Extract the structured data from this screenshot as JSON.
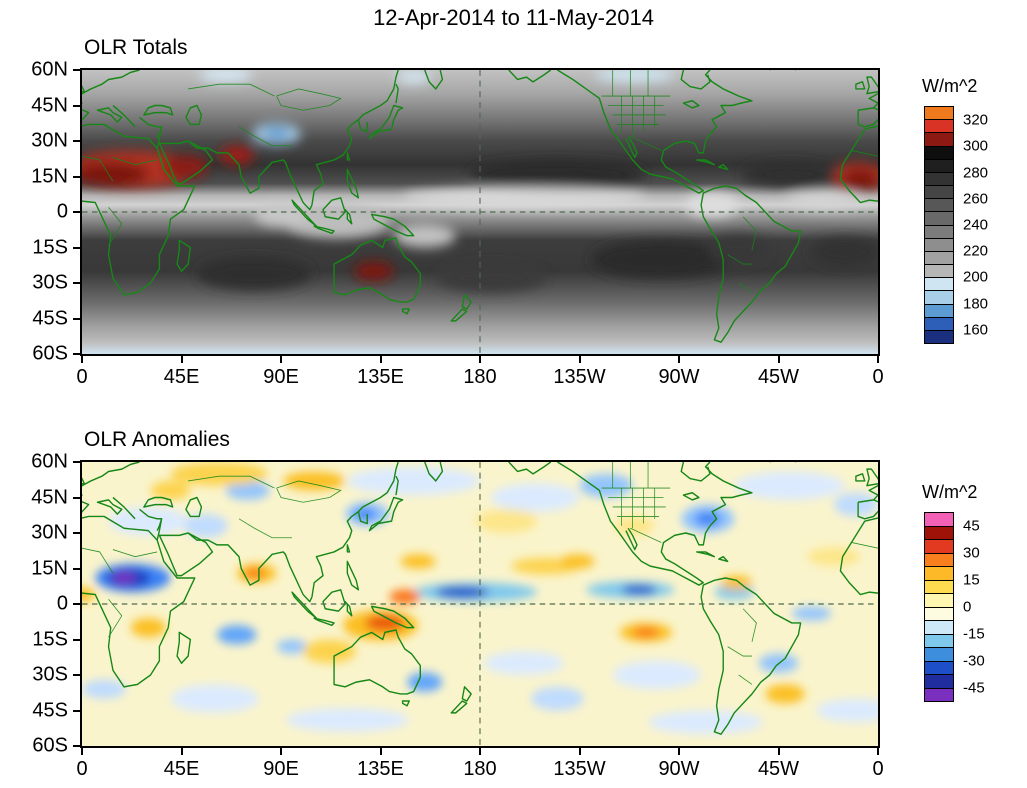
{
  "page": {
    "title": "12-Apr-2014 to 11-May-2014"
  },
  "panels": [
    {
      "title": "OLR Totals",
      "colorbar": {
        "label": "W/m^2"
      }
    },
    {
      "title": "OLR Anomalies",
      "colorbar": {
        "label": "W/m^2"
      }
    }
  ],
  "chart_data": [
    {
      "type": "heatmap",
      "title": "OLR Totals",
      "units": "W/m^2",
      "blur": 5,
      "x_ticks": [
        "0",
        "45E",
        "90E",
        "135E",
        "180",
        "135W",
        "90W",
        "45W",
        "0"
      ],
      "y_ticks": [
        "60N",
        "45N",
        "30N",
        "15N",
        "0",
        "15S",
        "30S",
        "45S",
        "60S"
      ],
      "colorbar": {
        "tick_labels": [
          "320",
          "300",
          "280",
          "260",
          "240",
          "220",
          "200",
          "180",
          "160"
        ],
        "tick_values": [
          320,
          300,
          280,
          260,
          240,
          220,
          200,
          180,
          160
        ],
        "colors": [
          "#EF7A1E",
          "#D93325",
          "#8C1A12",
          "#0E0E0E",
          "#1F1F1F",
          "#333333",
          "#454545",
          "#575757",
          "#696969",
          "#7C7C7C",
          "#8E8E8E",
          "#A2A2A2",
          "#B6B6B6",
          "#CFE5F2",
          "#A8CEE8",
          "#5D9BD3",
          "#2D5FB8",
          "#1A2F7E"
        ]
      },
      "lat_bands": [
        {
          "lat": 60,
          "color": "#C2C2C2",
          "value": 215
        },
        {
          "lat": 50,
          "color": "#A6A6A6",
          "value": 228
        },
        {
          "lat": 40,
          "color": "#7A7A7A",
          "value": 246
        },
        {
          "lat": 30,
          "color": "#4A4A4A",
          "value": 268
        },
        {
          "lat": 20,
          "color": "#333333",
          "value": 278
        },
        {
          "lat": 12,
          "color": "#4F4F4F",
          "value": 265
        },
        {
          "lat": 7,
          "color": "#B5B5B5",
          "value": 224
        },
        {
          "lat": 3,
          "color": "#D2D2D2",
          "value": 210
        },
        {
          "lat": -3,
          "color": "#8F8F8F",
          "value": 240
        },
        {
          "lat": -12,
          "color": "#3D3D3D",
          "value": 272
        },
        {
          "lat": -25,
          "color": "#383838",
          "value": 274
        },
        {
          "lat": -38,
          "color": "#6B6B6B",
          "value": 252
        },
        {
          "lat": -48,
          "color": "#9E9E9E",
          "value": 232
        },
        {
          "lat": -55,
          "color": "#BDBDBD",
          "value": 218
        },
        {
          "lat": -60,
          "color": "#CFE4F0",
          "value": 196
        }
      ],
      "features": [
        {
          "name": "sahara-arabia-halo",
          "lon": 22,
          "lat": 18,
          "rx": 30,
          "ry": 8,
          "color": "#B03020",
          "value": 300
        },
        {
          "name": "sahara-core",
          "lon": 13,
          "lat": 16,
          "rx": 17,
          "ry": 5,
          "color": "#7C120C",
          "value": 315
        },
        {
          "name": "arabia-core",
          "lon": 47,
          "lat": 19,
          "rx": 10,
          "ry": 5,
          "color": "#8C1A12",
          "value": 310
        },
        {
          "name": "india-pakistan-core",
          "lon": 70,
          "lat": 24,
          "rx": 8,
          "ry": 4,
          "color": "#9C1F12",
          "value": 305
        },
        {
          "name": "west-africa-edge-halo",
          "lon": 351,
          "lat": 15,
          "rx": 13,
          "ry": 6,
          "color": "#B03020",
          "value": 300
        },
        {
          "name": "west-africa-edge-core",
          "lon": 352,
          "lat": 14,
          "rx": 8,
          "ry": 4,
          "color": "#7C120C",
          "value": 315
        },
        {
          "name": "australia-interior-core",
          "lon": 132,
          "lat": -25,
          "rx": 9,
          "ry": 4,
          "color": "#7C1710",
          "value": 305
        },
        {
          "name": "n-pacific-subtropic-dark",
          "lon": 215,
          "lat": 16,
          "rx": 40,
          "ry": 6,
          "color": "#2B2B2B",
          "value": 285
        },
        {
          "name": "n-atlantic-subtropic-dark",
          "lon": 320,
          "lat": 16,
          "rx": 22,
          "ry": 5,
          "color": "#2E2E2E",
          "value": 282
        },
        {
          "name": "se-pacific-dark",
          "lon": 262,
          "lat": -20,
          "rx": 32,
          "ry": 8,
          "color": "#2B2B2B",
          "value": 285
        },
        {
          "name": "s-atlantic-dark",
          "lon": 345,
          "lat": -17,
          "rx": 16,
          "ry": 6,
          "color": "#313131",
          "value": 280
        },
        {
          "name": "s-indian-dark",
          "lon": 78,
          "lat": -26,
          "rx": 26,
          "ry": 7,
          "color": "#2F2F2F",
          "value": 282
        },
        {
          "name": "s-pacific-dark",
          "lon": 185,
          "lat": -28,
          "rx": 25,
          "ry": 6,
          "color": "#3A3A3A",
          "value": 275
        },
        {
          "name": "brazil-dark",
          "lon": 297,
          "lat": -16,
          "rx": 14,
          "ry": 6,
          "color": "#383838",
          "value": 276
        },
        {
          "name": "itcz-pacific-bright",
          "lon": 200,
          "lat": 6,
          "rx": 55,
          "ry": 4,
          "color": "#DADADA",
          "value": 205
        },
        {
          "name": "itcz-samerica-bright",
          "lon": 285,
          "lat": 3,
          "rx": 12,
          "ry": 5,
          "color": "#DEDEDE",
          "value": 202
        },
        {
          "name": "itcz-atlantic-bright",
          "lon": 336,
          "lat": 5,
          "rx": 17,
          "ry": 3.5,
          "color": "#D4D4D4",
          "value": 208
        },
        {
          "name": "maritime-continent-bright",
          "lon": 115,
          "lat": -4,
          "rx": 24,
          "ry": 7,
          "color": "#BDBDBD",
          "value": 222
        },
        {
          "name": "indian-ocean-bright",
          "lon": 90,
          "lat": -1,
          "rx": 12,
          "ry": 5,
          "color": "#C8C8C8",
          "value": 215
        },
        {
          "name": "spcz-light",
          "lon": 155,
          "lat": -10,
          "rx": 14,
          "ry": 5,
          "color": "#C2C2C2",
          "value": 218
        },
        {
          "name": "tibet-cool-halo",
          "lon": 88,
          "lat": 33,
          "rx": 11,
          "ry": 4.5,
          "color": "#A6CCE6",
          "value": 192
        },
        {
          "name": "tibet-cool-core",
          "lon": 88,
          "lat": 33,
          "rx": 6,
          "ry": 2.5,
          "color": "#5D9BD3",
          "value": 175
        },
        {
          "name": "arctic-canada-cool",
          "lon": 250,
          "lat": 58,
          "rx": 18,
          "ry": 3,
          "color": "#CFE5F2",
          "value": 196
        },
        {
          "name": "siberia-cool",
          "lon": 65,
          "lat": 58,
          "rx": 12,
          "ry": 3,
          "color": "#D5E9F5",
          "value": 198
        },
        {
          "name": "okhotsk-cool",
          "lon": 150,
          "lat": 57,
          "rx": 8,
          "ry": 2.5,
          "color": "#D5E9F5",
          "value": 198
        }
      ]
    },
    {
      "type": "heatmap",
      "title": "OLR Anomalies",
      "units": "W/m^2",
      "blur": 4,
      "base_color": "#FAF4CC",
      "x_ticks": [
        "0",
        "45E",
        "90E",
        "135E",
        "180",
        "135W",
        "90W",
        "45W",
        "0"
      ],
      "y_ticks": [
        "60N",
        "45N",
        "30N",
        "15N",
        "0",
        "15S",
        "30S",
        "45S",
        "60S"
      ],
      "colorbar": {
        "tick_labels": [
          "45",
          "30",
          "15",
          "0",
          "-15",
          "-30",
          "-45"
        ],
        "tick_values": [
          45,
          30,
          15,
          0,
          -15,
          -30,
          -45
        ],
        "colors": [
          "#F261B6",
          "#9E1207",
          "#E23A20",
          "#F97E1E",
          "#FDB927",
          "#FFDC4F",
          "#FFF6B0",
          "#FDFBE0",
          "#CDE8F6",
          "#7EC8EC",
          "#3E8EDE",
          "#1D4FC8",
          "#1F2D9E",
          "#7A2FBE"
        ]
      },
      "features": [
        {
          "name": "npac-pale-blue",
          "lon": 150,
          "lat": 52,
          "rx": 30,
          "ry": 6,
          "color": "#DBEAFE",
          "value": -5
        },
        {
          "name": "gulf-alaska-pale-blue",
          "lon": 205,
          "lat": 45,
          "rx": 20,
          "ry": 6,
          "color": "#DBEAFE",
          "value": -5
        },
        {
          "name": "natl-pale-blue",
          "lon": 320,
          "lat": 50,
          "rx": 25,
          "ry": 6,
          "color": "#DBEAFE",
          "value": -5
        },
        {
          "name": "med-pale-blue",
          "lon": 30,
          "lat": 35,
          "rx": 18,
          "ry": 6,
          "color": "#DBEAFE",
          "value": -5
        },
        {
          "name": "sepac-pale-blue",
          "lon": 260,
          "lat": -30,
          "rx": 20,
          "ry": 6,
          "color": "#DBEAFE",
          "value": -5
        },
        {
          "name": "spac-pale-blue",
          "lon": 200,
          "lat": -25,
          "rx": 18,
          "ry": 5,
          "color": "#DBEAFE",
          "value": -5
        },
        {
          "name": "sindian-pale-blue",
          "lon": 60,
          "lat": -40,
          "rx": 20,
          "ry": 6,
          "color": "#DBEAFE",
          "value": -5
        },
        {
          "name": "satl-pale-blue",
          "lon": 350,
          "lat": -45,
          "rx": 18,
          "ry": 5,
          "color": "#DBEAFE",
          "value": -5
        },
        {
          "name": "s-ocean-pale-blue-1",
          "lon": 120,
          "lat": -49,
          "rx": 28,
          "ry": 5,
          "color": "#DBEAFE",
          "value": -6
        },
        {
          "name": "s-ocean-pale-blue-2",
          "lon": 282,
          "lat": -50,
          "rx": 26,
          "ry": 5,
          "color": "#DBEAFE",
          "value": -6
        },
        {
          "name": "west-africa-neg-halo",
          "lon": 23,
          "lat": 11,
          "rx": 17,
          "ry": 6,
          "color": "#3B82F6",
          "value": -25
        },
        {
          "name": "west-africa-neg-mid",
          "lon": 21,
          "lat": 11,
          "rx": 10,
          "ry": 4,
          "color": "#1D3FC0",
          "value": -40
        },
        {
          "name": "west-africa-neg-core",
          "lon": 19,
          "lat": 11,
          "rx": 5.5,
          "ry": 2.2,
          "color": "#7A2FBE",
          "value": -50
        },
        {
          "name": "cpac-equator-neg",
          "lon": 178,
          "lat": 5,
          "rx": 28,
          "ry": 4,
          "color": "#7EC8EC",
          "value": -20
        },
        {
          "name": "cpac-equator-neg-core",
          "lon": 172,
          "lat": 5,
          "rx": 12,
          "ry": 2.4,
          "color": "#1D4FC8",
          "value": -35
        },
        {
          "name": "epac-equator-neg",
          "lon": 248,
          "lat": 6,
          "rx": 20,
          "ry": 3.5,
          "color": "#7EC8EC",
          "value": -20
        },
        {
          "name": "epac-equator-neg-core",
          "lon": 252,
          "lat": 6,
          "rx": 8,
          "ry": 2,
          "color": "#1D4FC8",
          "value": -35
        },
        {
          "name": "venezuela-neg",
          "lon": 295,
          "lat": 5,
          "rx": 9,
          "ry": 3,
          "color": "#7EC8EC",
          "value": -18
        },
        {
          "name": "us-east-neg",
          "lon": 283,
          "lat": 36,
          "rx": 12,
          "ry": 6,
          "color": "#93C5FD",
          "value": -15
        },
        {
          "name": "us-east-neg-core",
          "lon": 283,
          "lat": 36,
          "rx": 6,
          "ry": 3,
          "color": "#3B82F6",
          "value": -25
        },
        {
          "name": "nw-america-neg",
          "lon": 237,
          "lat": 50,
          "rx": 12,
          "ry": 5,
          "color": "#93C5FD",
          "value": -15
        },
        {
          "name": "east-asia-neg",
          "lon": 129,
          "lat": 38,
          "rx": 10,
          "ry": 5,
          "color": "#93C5FD",
          "value": -15
        },
        {
          "name": "east-asia-neg-core",
          "lon": 128,
          "lat": 38,
          "rx": 5,
          "ry": 2.5,
          "color": "#3B82F6",
          "value": -22
        },
        {
          "name": "central-asia-neg",
          "lon": 56,
          "lat": 33,
          "rx": 10,
          "ry": 5,
          "color": "#BFDBFE",
          "value": -10
        },
        {
          "name": "west-siberia-neg",
          "lon": 75,
          "lat": 48,
          "rx": 10,
          "ry": 4,
          "color": "#93C5FD",
          "value": -15
        },
        {
          "name": "indian-ocean-neg",
          "lon": 70,
          "lat": -13,
          "rx": 9,
          "ry": 4,
          "color": "#60A5FA",
          "value": -20
        },
        {
          "name": "se-indian-neg",
          "lon": 95,
          "lat": -18,
          "rx": 7,
          "ry": 3,
          "color": "#93C5FD",
          "value": -15
        },
        {
          "name": "tasman-neg",
          "lon": 155,
          "lat": -33,
          "rx": 8,
          "ry": 4,
          "color": "#60A5FA",
          "value": -20
        },
        {
          "name": "spac-neg",
          "lon": 215,
          "lat": -40,
          "rx": 12,
          "ry": 5,
          "color": "#BFDBFE",
          "value": -10
        },
        {
          "name": "atlantic-eq-neg",
          "lon": 330,
          "lat": -4,
          "rx": 9,
          "ry": 3,
          "color": "#93C5FD",
          "value": -12
        },
        {
          "name": "brazil-se-neg",
          "lon": 315,
          "lat": -25,
          "rx": 9,
          "ry": 4,
          "color": "#93C5FD",
          "value": -12
        },
        {
          "name": "s-africa-neg",
          "lon": 10,
          "lat": -36,
          "rx": 10,
          "ry": 4,
          "color": "#BFDBFE",
          "value": -10
        },
        {
          "name": "europe-neg",
          "lon": 350,
          "lat": 42,
          "rx": 10,
          "ry": 5,
          "color": "#BFDBFE",
          "value": -8
        },
        {
          "name": "maritime-pos-halo",
          "lon": 135,
          "lat": -9,
          "rx": 17,
          "ry": 6.5,
          "color": "#FBBF24",
          "value": 20
        },
        {
          "name": "maritime-pos-core",
          "lon": 137,
          "lat": -8,
          "rx": 9,
          "ry": 3.5,
          "color": "#EA580C",
          "value": 38
        },
        {
          "name": "new-guinea-pos",
          "lon": 146,
          "lat": 3,
          "rx": 7,
          "ry": 3,
          "color": "#F97316",
          "value": 28
        },
        {
          "name": "nw-australia-pos",
          "lon": 112,
          "lat": -20,
          "rx": 12,
          "ry": 5,
          "color": "#FCD34D",
          "value": 15
        },
        {
          "name": "india-pos",
          "lon": 79,
          "lat": 13,
          "rx": 9,
          "ry": 4,
          "color": "#FBBF24",
          "value": 20
        },
        {
          "name": "india-pos-core",
          "lon": 78,
          "lat": 13,
          "rx": 4.5,
          "ry": 2,
          "color": "#F97316",
          "value": 30
        },
        {
          "name": "c-africa-pos",
          "lon": 30,
          "lat": -10,
          "rx": 8,
          "ry": 4,
          "color": "#FBBF24",
          "value": 18
        },
        {
          "name": "guinea-coast-pos",
          "lon": 0,
          "lat": 4,
          "rx": 6,
          "ry": 3,
          "color": "#FBBF24",
          "value": 18
        },
        {
          "name": "n-asia-pos-1",
          "lon": 62,
          "lat": 55,
          "rx": 22,
          "ry": 5,
          "color": "#FCD34D",
          "value": 15
        },
        {
          "name": "n-asia-pos-2",
          "lon": 105,
          "lat": 52,
          "rx": 14,
          "ry": 4,
          "color": "#FBBF24",
          "value": 20
        },
        {
          "name": "kazakh-pos",
          "lon": 40,
          "lat": 48,
          "rx": 9,
          "ry": 4,
          "color": "#FCD34D",
          "value": 12
        },
        {
          "name": "npac-pos-band",
          "lon": 210,
          "lat": 16,
          "rx": 16,
          "ry": 3.5,
          "color": "#FCD34D",
          "value": 15
        },
        {
          "name": "npac-pos-core",
          "lon": 224,
          "lat": 18,
          "rx": 8,
          "ry": 3,
          "color": "#FBBF24",
          "value": 20
        },
        {
          "name": "wpac-pos",
          "lon": 152,
          "lat": 18,
          "rx": 8,
          "ry": 3,
          "color": "#FBBF24",
          "value": 18
        },
        {
          "name": "sepac-pos",
          "lon": 255,
          "lat": -12,
          "rx": 12,
          "ry": 4,
          "color": "#FBBF24",
          "value": 18
        },
        {
          "name": "sepac-pos-core",
          "lon": 255,
          "lat": -12,
          "rx": 6,
          "ry": 2,
          "color": "#F97316",
          "value": 28
        },
        {
          "name": "colombia-pos",
          "lon": 296,
          "lat": 9,
          "rx": 7,
          "ry": 3,
          "color": "#FBBF24",
          "value": 18
        },
        {
          "name": "argentina-pos",
          "lon": 318,
          "lat": -38,
          "rx": 9,
          "ry": 4,
          "color": "#FBBF24",
          "value": 16
        },
        {
          "name": "atlantic-pos",
          "lon": 340,
          "lat": 20,
          "rx": 12,
          "ry": 4,
          "color": "#FDE68A",
          "value": 10
        },
        {
          "name": "npac-mid-pos",
          "lon": 192,
          "lat": 35,
          "rx": 14,
          "ry": 5,
          "color": "#FDE68A",
          "value": 8
        },
        {
          "name": "us-sw-pos",
          "lon": 250,
          "lat": 33,
          "rx": 9,
          "ry": 4,
          "color": "#FDE68A",
          "value": 8
        }
      ]
    }
  ]
}
